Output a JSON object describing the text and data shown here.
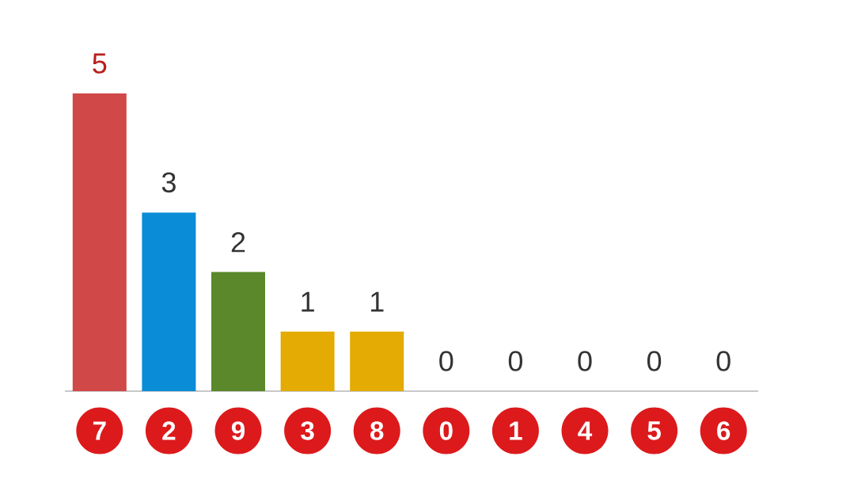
{
  "chart_data": {
    "type": "bar",
    "categories": [
      "7",
      "2",
      "9",
      "3",
      "8",
      "0",
      "1",
      "4",
      "5",
      "6"
    ],
    "values": [
      5,
      3,
      2,
      1,
      1,
      0,
      0,
      0,
      0,
      0
    ],
    "colors": [
      "#d04848",
      "#0a8cd6",
      "#5a882a",
      "#e3ab03",
      "#e3ab03",
      null,
      null,
      null,
      null,
      null
    ],
    "data_labels": true
  }
}
